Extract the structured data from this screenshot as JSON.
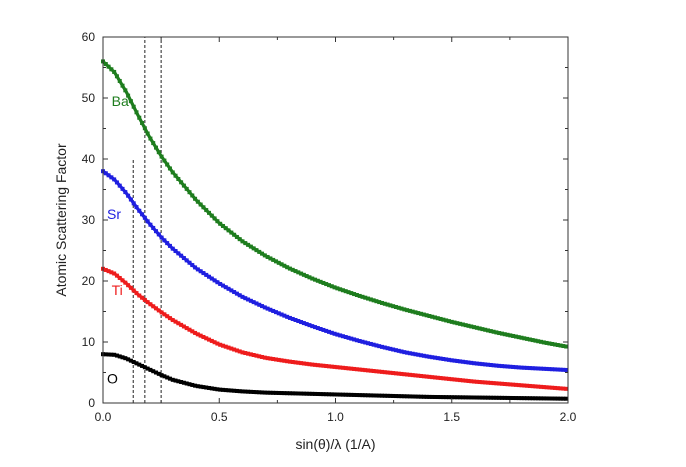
{
  "chart_data": {
    "type": "line",
    "title": "",
    "xlabel": "sin(θ)/λ (1/A)",
    "ylabel": "Atomic Scattering Factor",
    "xlim": [
      0.0,
      2.0
    ],
    "ylim": [
      0,
      60
    ],
    "xticks": [
      "0.0",
      "0.5",
      "1.0",
      "1.5",
      "2.0"
    ],
    "yticks": [
      "0",
      "10",
      "20",
      "30",
      "40",
      "50",
      "60"
    ],
    "grid": false,
    "legend": "inline labels",
    "vertical_dashed_lines": [
      {
        "x": 0.13,
        "y_top": 40
      },
      {
        "x": 0.18,
        "y_top": 60
      },
      {
        "x": 0.25,
        "y_top": 60
      }
    ],
    "series": [
      {
        "name": "Ba",
        "color": "#1e7d1e",
        "x": [
          0.0,
          0.05,
          0.1,
          0.15,
          0.2,
          0.25,
          0.3,
          0.4,
          0.5,
          0.6,
          0.7,
          0.8,
          0.9,
          1.0,
          1.1,
          1.2,
          1.3,
          1.4,
          1.5,
          1.6,
          1.7,
          1.8,
          1.9,
          2.0
        ],
        "y": [
          56.0,
          54.2,
          51.0,
          47.2,
          43.6,
          40.5,
          37.8,
          33.3,
          29.5,
          26.5,
          24.1,
          22.1,
          20.4,
          18.9,
          17.6,
          16.4,
          15.3,
          14.3,
          13.3,
          12.4,
          11.5,
          10.7,
          9.9,
          9.2
        ]
      },
      {
        "name": "Sr",
        "color": "#1f1fe0",
        "x": [
          0.0,
          0.05,
          0.1,
          0.15,
          0.2,
          0.25,
          0.3,
          0.4,
          0.5,
          0.6,
          0.7,
          0.8,
          0.9,
          1.0,
          1.1,
          1.2,
          1.3,
          1.4,
          1.5,
          1.6,
          1.7,
          1.8,
          1.9,
          2.0
        ],
        "y": [
          38.0,
          36.6,
          34.4,
          31.8,
          29.4,
          27.2,
          25.3,
          22.1,
          19.6,
          17.4,
          15.6,
          14.0,
          12.6,
          11.3,
          10.2,
          9.2,
          8.3,
          7.6,
          7.0,
          6.5,
          6.1,
          5.8,
          5.6,
          5.4
        ]
      },
      {
        "name": "Ti",
        "color": "#ee1c1c",
        "x": [
          0.0,
          0.05,
          0.1,
          0.15,
          0.2,
          0.25,
          0.3,
          0.4,
          0.5,
          0.6,
          0.7,
          0.8,
          0.9,
          1.0,
          1.1,
          1.2,
          1.3,
          1.4,
          1.5,
          1.6,
          1.7,
          1.8,
          1.9,
          2.0
        ],
        "y": [
          22.0,
          21.2,
          19.6,
          17.8,
          16.3,
          14.9,
          13.6,
          11.4,
          9.6,
          8.3,
          7.4,
          6.8,
          6.3,
          5.9,
          5.5,
          5.1,
          4.7,
          4.3,
          3.9,
          3.5,
          3.2,
          2.9,
          2.6,
          2.3
        ]
      },
      {
        "name": "O",
        "color": "#000000",
        "x": [
          0.0,
          0.05,
          0.1,
          0.15,
          0.2,
          0.25,
          0.3,
          0.4,
          0.5,
          0.6,
          0.7,
          0.8,
          0.9,
          1.0,
          1.2,
          1.4,
          1.6,
          1.8,
          2.0
        ],
        "y": [
          8.0,
          7.9,
          7.3,
          6.4,
          5.5,
          4.6,
          3.8,
          2.8,
          2.2,
          1.9,
          1.7,
          1.6,
          1.5,
          1.4,
          1.2,
          1.0,
          0.9,
          0.8,
          0.7
        ]
      }
    ],
    "series_labels": [
      {
        "text": "Ba",
        "x": 0.02,
        "y": 49.5
      },
      {
        "text": "Sr",
        "x": 0.0,
        "y": 31.0
      },
      {
        "text": "Ti",
        "x": 0.02,
        "y": 18.5
      },
      {
        "text": "O",
        "x": 0.0,
        "y": 4.0
      }
    ]
  }
}
